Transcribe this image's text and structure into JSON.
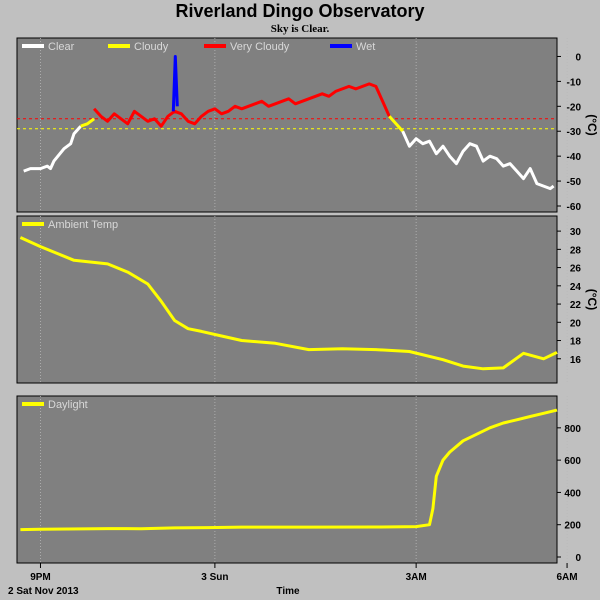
{
  "title": "Riverland Dingo Observatory",
  "subtitle": "Sky is Clear.",
  "colors": {
    "background": "#c0c0c0",
    "plot_bg": "#808080",
    "clear": "#ffffff",
    "cloudy": "#ffff00",
    "very_cloudy": "#ff0000",
    "wet": "#0000ff",
    "ambient": "#ffff00",
    "daylight": "#ffff00",
    "threshold_cloudy": "#ffff00",
    "threshold_very_cloudy": "#ff0000"
  },
  "chart_data": [
    {
      "type": "line",
      "panel": "sky",
      "legend": [
        "Clear",
        "Cloudy",
        "Very Cloudy",
        "Wet"
      ],
      "ylabel": "(°C)",
      "ylim": [
        -60,
        5
      ],
      "yticks": [
        0,
        -10,
        -20,
        -30,
        -40,
        -50,
        -60
      ],
      "x_unit": "hours from 9PM (2 Sat Nov 2013)",
      "thresholds": {
        "very_cloudy": -25,
        "cloudy": -29
      },
      "series": [
        {
          "name": "Clear",
          "x": [
            -0.25,
            -0.15,
            0,
            0.1,
            0.15,
            0.2,
            0.35,
            0.45,
            0.5,
            0.6
          ],
          "y": [
            -46,
            -45,
            -45,
            -44,
            -45,
            -42,
            -37,
            -35,
            -31,
            -28
          ]
        },
        {
          "name": "Cloudy",
          "x": [
            0.6,
            0.7,
            0.8
          ],
          "y": [
            -28,
            -27,
            -25
          ]
        },
        {
          "name": "Very Cloudy",
          "x": [
            0.8,
            0.9,
            1.0,
            1.1,
            1.2,
            1.3,
            1.4,
            1.5,
            1.6,
            1.7,
            1.8,
            1.9,
            2.0,
            2.1,
            2.2,
            2.3,
            2.4,
            2.5,
            2.6,
            2.7,
            2.8,
            2.9,
            3.0,
            3.1,
            3.2,
            3.3,
            3.4,
            3.5,
            3.6,
            3.7,
            3.8,
            3.9,
            4.0,
            4.1,
            4.2,
            4.3,
            4.4,
            4.5,
            4.6,
            4.7,
            4.8,
            4.9,
            5.0,
            5.1,
            5.2
          ],
          "y": [
            -21,
            -24,
            -26,
            -23,
            -25,
            -27,
            -22,
            -24,
            -26,
            -25,
            -28,
            -24,
            -22,
            -23,
            -26,
            -27,
            -24,
            -22,
            -21,
            -23,
            -22,
            -20,
            -21,
            -20,
            -19,
            -18,
            -20,
            -19,
            -18,
            -17,
            -19,
            -18,
            -17,
            -16,
            -15,
            -16,
            -14,
            -13,
            -12,
            -13,
            -12,
            -11,
            -12,
            -18,
            -24
          ]
        },
        {
          "name": "Wet",
          "x": [
            1.98,
            2.01,
            2.04
          ],
          "y": [
            -22,
            0,
            -20
          ]
        },
        {
          "name": "Cloudy",
          "x": [
            5.2,
            5.3,
            5.4
          ],
          "y": [
            -24,
            -27,
            -30
          ]
        },
        {
          "name": "Clear",
          "x": [
            5.4,
            5.5,
            5.6,
            5.7,
            5.8,
            5.9,
            6.0,
            6.1,
            6.2,
            6.3,
            6.4,
            6.5,
            6.6,
            6.7,
            6.8,
            6.9,
            7.0,
            7.1,
            7.2,
            7.3,
            7.4,
            7.5,
            7.6,
            7.65
          ],
          "y": [
            -30,
            -36,
            -33,
            -35,
            -34,
            -39,
            -36,
            -40,
            -43,
            -38,
            -35,
            -36,
            -42,
            -40,
            -41,
            -44,
            -43,
            -46,
            -49,
            -45,
            -51,
            -52,
            -53,
            -52
          ]
        }
      ]
    },
    {
      "type": "line",
      "panel": "ambient",
      "legend": [
        "Ambient Temp"
      ],
      "ylabel": "(°C)",
      "ylim": [
        14,
        31
      ],
      "yticks": [
        30,
        28,
        26,
        24,
        22,
        20,
        18,
        16
      ],
      "series": [
        {
          "name": "Ambient Temp",
          "x": [
            -0.3,
            0,
            0.5,
            1.0,
            1.3,
            1.6,
            1.8,
            2.0,
            2.2,
            2.4,
            2.7,
            3.0,
            3.5,
            4.0,
            4.5,
            5.0,
            5.5,
            6.0,
            6.3,
            6.6,
            6.9,
            7.2,
            7.5,
            7.7
          ],
          "y": [
            29.3,
            28.3,
            26.8,
            26.4,
            25.5,
            24.2,
            22.3,
            20.2,
            19.3,
            19.0,
            18.5,
            18.0,
            17.7,
            17.0,
            17.1,
            17.0,
            16.8,
            15.9,
            15.2,
            14.9,
            15.0,
            16.6,
            16.0,
            16.7
          ]
        }
      ]
    },
    {
      "type": "line",
      "panel": "daylight",
      "legend": [
        "Daylight"
      ],
      "ylim": [
        0,
        960
      ],
      "yticks": [
        800,
        600,
        400,
        200,
        0
      ],
      "series": [
        {
          "name": "Daylight",
          "x": [
            -0.3,
            0,
            1.0,
            1.5,
            2.0,
            2.5,
            3.0,
            4.0,
            5.0,
            5.6,
            5.8,
            5.85,
            5.9,
            6.0,
            6.1,
            6.3,
            6.5,
            6.7,
            6.9,
            7.1,
            7.3,
            7.5,
            7.7
          ],
          "y": [
            170,
            172,
            176,
            175,
            180,
            182,
            185,
            185,
            186,
            188,
            200,
            300,
            500,
            600,
            650,
            720,
            760,
            800,
            830,
            850,
            870,
            890,
            910
          ]
        }
      ]
    }
  ],
  "x_axis": {
    "title": "Time",
    "start_label": "2 Sat Nov 2013",
    "range_hours": [
      -0.35,
      7.7
    ],
    "ticks": [
      {
        "label": "9PM",
        "hours": 0
      },
      {
        "label": "3 Sun",
        "hours": 3
      },
      {
        "label": "3AM",
        "hours": 6
      },
      {
        "label": "6AM",
        "hours": 9
      }
    ]
  }
}
